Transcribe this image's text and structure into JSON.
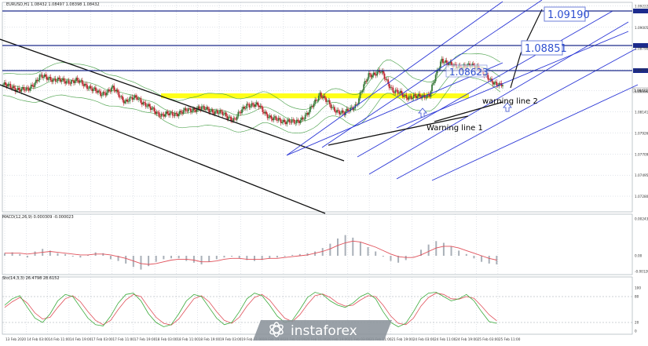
{
  "header": {
    "symbol_line": "EURUSD,H1  1.08432 1.08497 1.08398 1.08432",
    "macd_label": "MACD(12,26,9) 0.000309 -0.000023",
    "stoch_label": "Sto(14,3,3) 26.4798 28.6152"
  },
  "watermark": {
    "brand": "instaforex"
  },
  "colors": {
    "level_line": "#1c2b8c",
    "channel_blue": "#2a36d6",
    "bull": "#3a7a3a",
    "bear": "#c0252f",
    "bollinger": "#3d9a3d",
    "highlight_zone": "#ffff00",
    "macd_signal": "#e0505a",
    "stoch_main": "#3aaa3a",
    "stoch_signal": "#e0505a",
    "grid": "#c0c8d4",
    "axis_text": "#333333",
    "price_box_text": "#2e4fd0"
  },
  "chart_data": {
    "type": "candlestick",
    "panels": [
      "price",
      "MACD(12,26,9)",
      "Stochastic(14,3,3)"
    ],
    "price_axis": {
      "range": [
        1.0712,
        1.0926
      ],
      "ticks": [
        "1.09222",
        "1.09005",
        "1.08790",
        "1.08571",
        "1.08356",
        "1.08141",
        "1.07926",
        "1.07709",
        "1.07495",
        "1.07280"
      ]
    },
    "time_axis": {
      "labels": [
        "13 Feb 2020",
        "14 Feb 03:00",
        "14 Feb 11:00",
        "14 Feb 19:00",
        "17 Feb 03:00",
        "17 Feb 11:00",
        "17 Feb 19:00",
        "18 Feb 03:00",
        "18 Feb 11:00",
        "18 Feb 19:00",
        "19 Feb 03:00",
        "19 Feb 11:00",
        "19 Feb 19:00",
        "20 Feb 03:00",
        "20 Feb 11:00",
        "20 Feb 19:00",
        "21 Feb 03:00",
        "21 Feb 11:00",
        "21 Feb 19:00",
        "24 Feb 03:00",
        "24 Feb 11:00",
        "24 Feb 19:00",
        "25 Feb 03:00",
        "25 Feb 11:00"
      ]
    },
    "price_levels": [
      {
        "price": 1.0919,
        "label": "1.09190"
      },
      {
        "price": 1.0885,
        "label": "1.08851"
      },
      {
        "price": 1.08623,
        "label": "1.08623"
      }
    ],
    "current_price": {
      "value": 1.08432,
      "label": "1.08432"
    },
    "support_zone": {
      "from": 1.0828,
      "to": 1.0833
    },
    "annotations": [
      {
        "text": "Warning line 1"
      },
      {
        "text": "warning line 2"
      }
    ],
    "macd": {
      "axis_ticks": [
        "0.00243",
        "0.00",
        "-0.001208"
      ],
      "histogram": [
        0.3,
        0.4,
        0.2,
        -0.2,
        0.5,
        0.8,
        0.6,
        0.3,
        0.2,
        -0.1,
        -0.2,
        0.1,
        0.4,
        0.3,
        -0.4,
        -0.6,
        -0.9,
        -1.3,
        -1.6,
        -1.2,
        -0.7,
        -0.4,
        -0.3,
        -0.3,
        -0.6,
        -0.8,
        -1.0,
        -0.7,
        -0.4,
        -0.2,
        -0.1,
        -0.3,
        -0.5,
        -0.6,
        -0.5,
        -0.3,
        -0.2,
        -0.1,
        0.1,
        0.2,
        0.3,
        0.5,
        0.9,
        1.4,
        2.0,
        2.4,
        2.1,
        1.6,
        1.0,
        0.5,
        -0.1,
        -0.6,
        -0.8,
        -0.5,
        0.0,
        0.7,
        1.3,
        1.7,
        1.5,
        1.1,
        0.6,
        0.2,
        -0.3,
        -0.7,
        -0.9,
        -1.0
      ],
      "signal": [
        0.3,
        0.3,
        0.3,
        0.2,
        0.3,
        0.4,
        0.5,
        0.4,
        0.3,
        0.2,
        0.1,
        0.1,
        0.2,
        0.2,
        0.1,
        -0.1,
        -0.3,
        -0.6,
        -0.9,
        -1.0,
        -0.9,
        -0.7,
        -0.5,
        -0.4,
        -0.4,
        -0.5,
        -0.7,
        -0.7,
        -0.6,
        -0.4,
        -0.3,
        -0.3,
        -0.4,
        -0.4,
        -0.4,
        -0.3,
        -0.3,
        -0.2,
        -0.1,
        0.0,
        0.1,
        0.3,
        0.5,
        0.8,
        1.2,
        1.5,
        1.7,
        1.6,
        1.3,
        1.0,
        0.6,
        0.2,
        -0.1,
        -0.2,
        -0.2,
        0.1,
        0.5,
        0.9,
        1.1,
        1.1,
        0.9,
        0.6,
        0.3,
        0.0,
        -0.3,
        -0.5
      ]
    },
    "stochastic": {
      "axis_ticks": [
        "100",
        "80",
        "20",
        "0"
      ],
      "main": [
        60,
        75,
        82,
        55,
        30,
        20,
        40,
        70,
        85,
        80,
        55,
        30,
        15,
        12,
        35,
        65,
        85,
        88,
        70,
        40,
        20,
        10,
        15,
        40,
        70,
        85,
        80,
        55,
        30,
        15,
        20,
        45,
        75,
        88,
        82,
        60,
        35,
        20,
        25,
        50,
        78,
        90,
        85,
        70,
        60,
        55,
        65,
        80,
        88,
        75,
        45,
        20,
        10,
        18,
        45,
        75,
        88,
        90,
        80,
        70,
        75,
        85,
        70,
        45,
        22,
        18
      ],
      "signal": [
        55,
        68,
        78,
        65,
        42,
        28,
        32,
        55,
        75,
        82,
        68,
        45,
        25,
        15,
        25,
        50,
        72,
        85,
        80,
        55,
        32,
        18,
        14,
        28,
        52,
        75,
        82,
        68,
        45,
        25,
        18,
        32,
        58,
        78,
        85,
        72,
        50,
        30,
        22,
        38,
        62,
        82,
        86,
        78,
        65,
        58,
        60,
        72,
        82,
        80,
        60,
        35,
        18,
        15,
        30,
        58,
        78,
        88,
        85,
        75,
        74,
        80,
        76,
        58,
        38,
        24
      ]
    }
  }
}
